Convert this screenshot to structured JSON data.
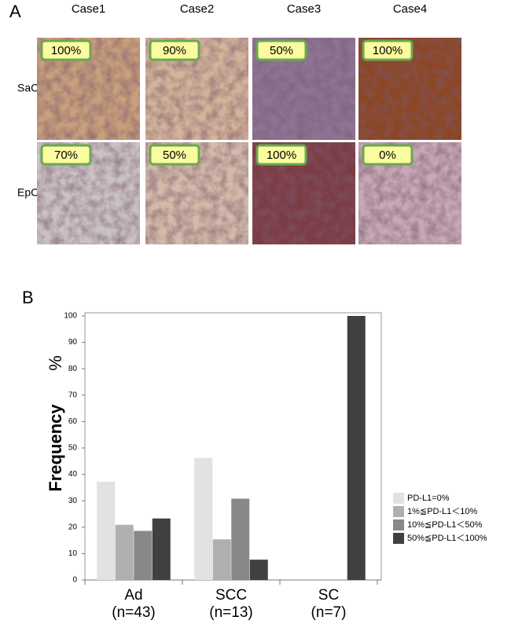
{
  "panel_a": {
    "label": "A",
    "columns": [
      "Case1",
      "Case2",
      "Case3",
      "Case4"
    ],
    "rows": [
      "SaC",
      "EpC"
    ],
    "cells": [
      [
        "100%",
        "90%",
        "50%",
        "100%"
      ],
      [
        "70%",
        "50%",
        "100%",
        "0%"
      ]
    ]
  },
  "chart_data": {
    "type": "bar",
    "panel_label": "B",
    "ylabel": "Frequency",
    "ylabel_unit": "%",
    "categories": [
      "Ad",
      "SCC",
      "SC"
    ],
    "category_notes": [
      "(n=43)",
      "(n=13)",
      "(n=7)"
    ],
    "series": [
      {
        "name": "PD-L1=0%",
        "color": "#e2e2e2",
        "values": [
          37.2,
          46.2,
          0
        ]
      },
      {
        "name": "1%≦PD-L1＜10%",
        "color": "#b0b0b0",
        "values": [
          20.9,
          15.4,
          0
        ]
      },
      {
        "name": "10%≦PD-L1＜50%",
        "color": "#888888",
        "values": [
          18.6,
          30.8,
          0
        ]
      },
      {
        "name": "50%≦PD-L1＜100%",
        "color": "#404040",
        "values": [
          23.3,
          7.7,
          100
        ]
      }
    ],
    "ylim": [
      0,
      100
    ],
    "yticks": [
      0,
      10,
      20,
      30,
      40,
      50,
      60,
      70,
      80,
      90,
      100
    ],
    "legend": "right"
  }
}
